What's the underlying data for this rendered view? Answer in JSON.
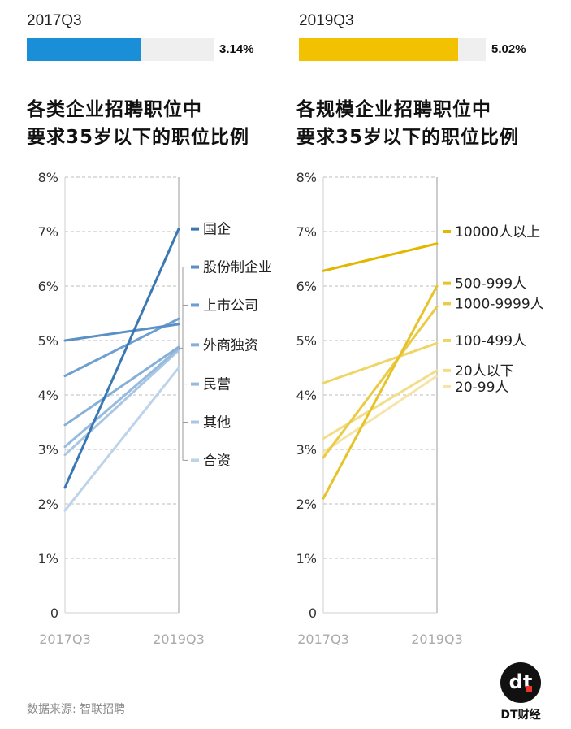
{
  "left_panel": {
    "period": "2017Q3",
    "bar_fraction": 0.61,
    "bar_value_label": "3.14%",
    "bar_color": "#1a8fd8",
    "title_line1": "各类企业招聘职位中",
    "title_line2": "要求35岁以下的职位比例"
  },
  "right_panel": {
    "period": "2019Q3",
    "bar_fraction": 0.85,
    "bar_value_label": "5.02%",
    "bar_color": "#f2c200",
    "title_line1": "各规模企业招聘职位中",
    "title_line2": "要求35岁以下的职位比例"
  },
  "chart_data": [
    {
      "type": "line",
      "title": "各类企业招聘职位中要求35岁以下的职位比例",
      "x": [
        "2017Q3",
        "2019Q3"
      ],
      "ylim": [
        0,
        8
      ],
      "yticks": [
        "0",
        "1%",
        "2%",
        "3%",
        "4%",
        "5%",
        "6%",
        "7%",
        "8%"
      ],
      "grid": true,
      "series": [
        {
          "name": "国企",
          "values": [
            2.3,
            7.05
          ],
          "color": "#3a78b4",
          "label_value": 7.05
        },
        {
          "name": "股份制企业",
          "values": [
            5.0,
            5.3
          ],
          "color": "#5a90c6",
          "label_value": 6.35
        },
        {
          "name": "上市公司",
          "values": [
            4.35,
            5.4
          ],
          "color": "#6d9fd0",
          "label_value": 5.65
        },
        {
          "name": "外商独资",
          "values": [
            3.45,
            4.88
          ],
          "color": "#86b0d8",
          "label_value": 4.92
        },
        {
          "name": "民营",
          "values": [
            3.05,
            4.85
          ],
          "color": "#97bbdf",
          "label_value": 4.2
        },
        {
          "name": "其他",
          "values": [
            2.9,
            4.82
          ],
          "color": "#a9c7e4",
          "label_value": 3.5
        },
        {
          "name": "合资",
          "values": [
            1.88,
            4.5
          ],
          "color": "#bcd3ea",
          "label_value": 2.8
        }
      ]
    },
    {
      "type": "line",
      "title": "各规模企业招聘职位中要求35岁以下的职位比例",
      "x": [
        "2017Q3",
        "2019Q3"
      ],
      "ylim": [
        0,
        8
      ],
      "yticks": [
        "0",
        "1%",
        "2%",
        "3%",
        "4%",
        "5%",
        "6%",
        "7%",
        "8%"
      ],
      "grid": true,
      "series": [
        {
          "name": "10000人以上",
          "values": [
            6.28,
            6.78
          ],
          "color": "#e2b700",
          "label_value": 7.0
        },
        {
          "name": "500-999人",
          "values": [
            2.1,
            6.0
          ],
          "color": "#e7c32a",
          "label_value": 6.05
        },
        {
          "name": "1000-9999人",
          "values": [
            2.85,
            5.62
          ],
          "color": "#ebcb45",
          "label_value": 5.68
        },
        {
          "name": "100-499人",
          "values": [
            4.22,
            4.95
          ],
          "color": "#efd466",
          "label_value": 5.0
        },
        {
          "name": "20人以下",
          "values": [
            3.2,
            4.45
          ],
          "color": "#f2dd88",
          "label_value": 4.45
        },
        {
          "name": "20-99人",
          "values": [
            2.95,
            4.35
          ],
          "color": "#f5e5aa",
          "label_value": 4.15
        }
      ]
    }
  ],
  "source": "数据来源: 智联招聘",
  "brand": {
    "logo_text": "dt",
    "name": "DT财经"
  }
}
